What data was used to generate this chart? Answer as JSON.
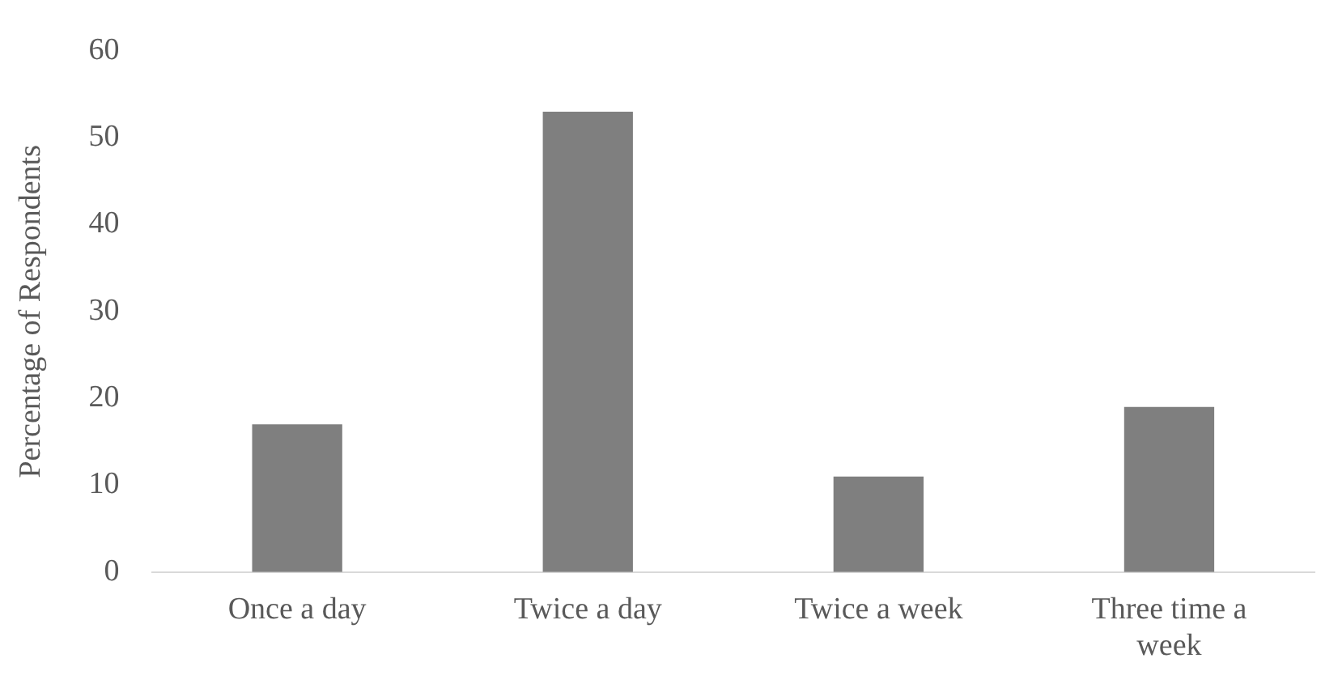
{
  "chart_data": {
    "type": "bar",
    "ylabel": "Percentage of Respondents",
    "categories": [
      "Once a day",
      "Twice a day",
      "Twice a week",
      "Three time a week"
    ],
    "values": [
      17,
      53,
      11,
      19
    ],
    "color": "#7f7f7f",
    "ylim": [
      0,
      60
    ],
    "yticks": [
      0,
      10,
      20,
      30,
      40,
      50,
      60
    ],
    "grid": false,
    "legend": false
  }
}
